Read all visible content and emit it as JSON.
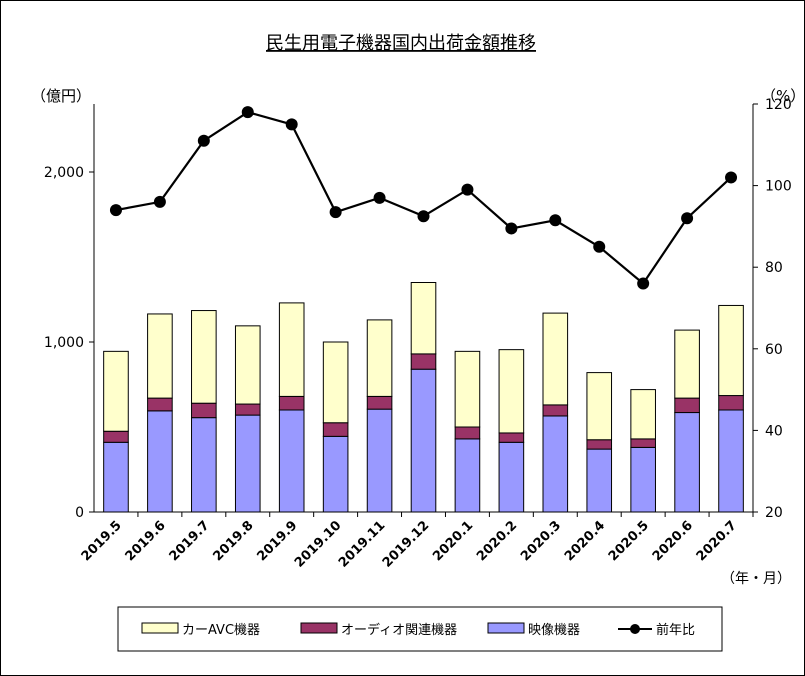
{
  "chart_data": {
    "type": "bar",
    "title": "民生用電子機器国内出荷金額推移",
    "ylabel_left": "（億円）",
    "ylabel_right": "（%）",
    "xlabel": "（年・月）",
    "categories": [
      "2019.5",
      "2019.6",
      "2019.7",
      "2019.8",
      "2019.9",
      "2019.10",
      "2019.11",
      "2019.12",
      "2020.1",
      "2020.2",
      "2020.3",
      "2020.4",
      "2020.5",
      "2020.6",
      "2020.7"
    ],
    "ylim_left": [
      0,
      2400
    ],
    "yticks_left": [
      0,
      1000,
      2000
    ],
    "ytick_labels_left": [
      "0",
      "1,000",
      "2,000"
    ],
    "ylim_right": [
      20,
      120
    ],
    "yticks_right": [
      20,
      40,
      60,
      80,
      100,
      120
    ],
    "stacked": true,
    "series": [
      {
        "name": "映像機器",
        "kind": "bar",
        "color": "#9999ff",
        "values": [
          410,
          595,
          555,
          570,
          600,
          445,
          605,
          840,
          430,
          410,
          565,
          370,
          380,
          585,
          600
        ]
      },
      {
        "name": "オーディオ関連機器",
        "kind": "bar",
        "color": "#993366",
        "values": [
          65,
          75,
          85,
          65,
          80,
          80,
          75,
          90,
          70,
          55,
          65,
          55,
          50,
          85,
          85
        ]
      },
      {
        "name": "カーAVC機器",
        "kind": "bar",
        "color": "#ffffcc",
        "values": [
          470,
          495,
          545,
          460,
          550,
          475,
          450,
          420,
          445,
          490,
          540,
          395,
          290,
          400,
          530
        ]
      },
      {
        "name": "前年比",
        "kind": "line",
        "axis": "right",
        "color": "#000000",
        "values": [
          94,
          96,
          111,
          118,
          115,
          93.5,
          97,
          92.5,
          99,
          89.5,
          91.5,
          85,
          76,
          92,
          102
        ]
      }
    ],
    "legend_position": "bottom",
    "grid": false
  }
}
